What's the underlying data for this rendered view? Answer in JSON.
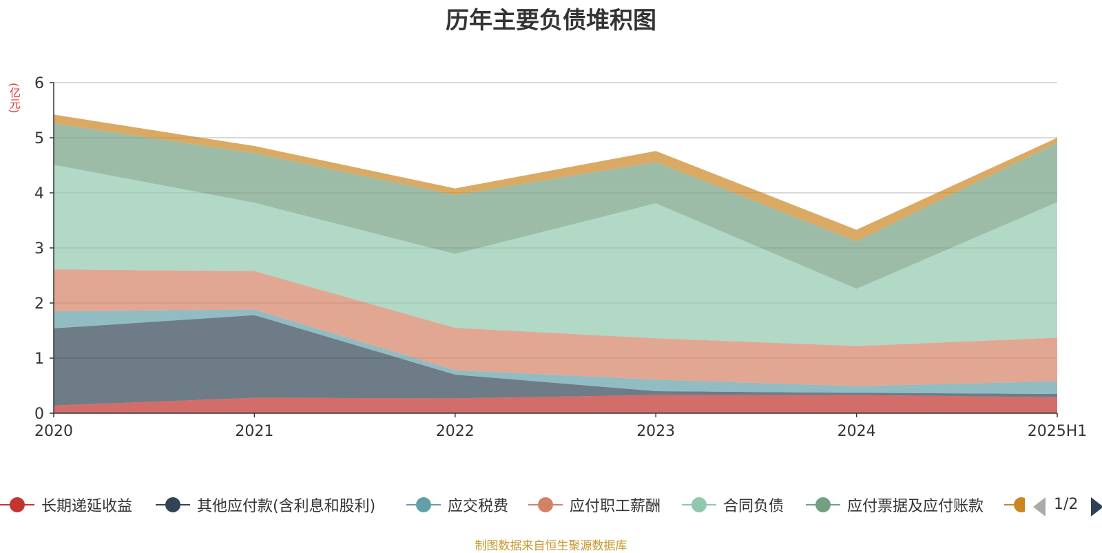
{
  "chart_data": {
    "type": "area",
    "stacked": true,
    "title": "历年主要负债堆积图",
    "unit_label": "(亿元)",
    "source": "制图数据来自恒生聚源数据库",
    "x": [
      "2020",
      "2021",
      "2022",
      "2023",
      "2024",
      "2025H1"
    ],
    "ylim": [
      0,
      6
    ],
    "yticks": [
      0,
      1,
      2,
      3,
      4,
      5,
      6
    ],
    "grid": true,
    "legend_position": "bottom",
    "legend_page": "1/2",
    "series": [
      {
        "name": "长期递延收益",
        "color": "#c23531",
        "values": [
          0.14,
          0.28,
          0.27,
          0.33,
          0.33,
          0.29
        ]
      },
      {
        "name": "其他应付款(含利息和股利)",
        "color": "#2f4554",
        "values": [
          1.4,
          1.5,
          0.43,
          0.07,
          0.04,
          0.06
        ]
      },
      {
        "name": "应交税费",
        "color": "#61a0a8",
        "values": [
          0.31,
          0.1,
          0.08,
          0.21,
          0.12,
          0.23
        ]
      },
      {
        "name": "应付职工薪酬",
        "color": "#d48265",
        "values": [
          0.76,
          0.7,
          0.77,
          0.75,
          0.73,
          0.79
        ]
      },
      {
        "name": "合同负债",
        "color": "#91c7ae",
        "values": [
          1.9,
          1.24,
          1.34,
          2.45,
          1.04,
          2.46
        ]
      },
      {
        "name": "应付票据及应付账款",
        "color": "#749f83",
        "values": [
          0.75,
          0.9,
          1.07,
          0.75,
          0.86,
          1.08
        ]
      },
      {
        "name": "",
        "color": "#ca8622",
        "values": [
          0.16,
          0.13,
          0.12,
          0.2,
          0.21,
          0.09
        ]
      }
    ]
  }
}
